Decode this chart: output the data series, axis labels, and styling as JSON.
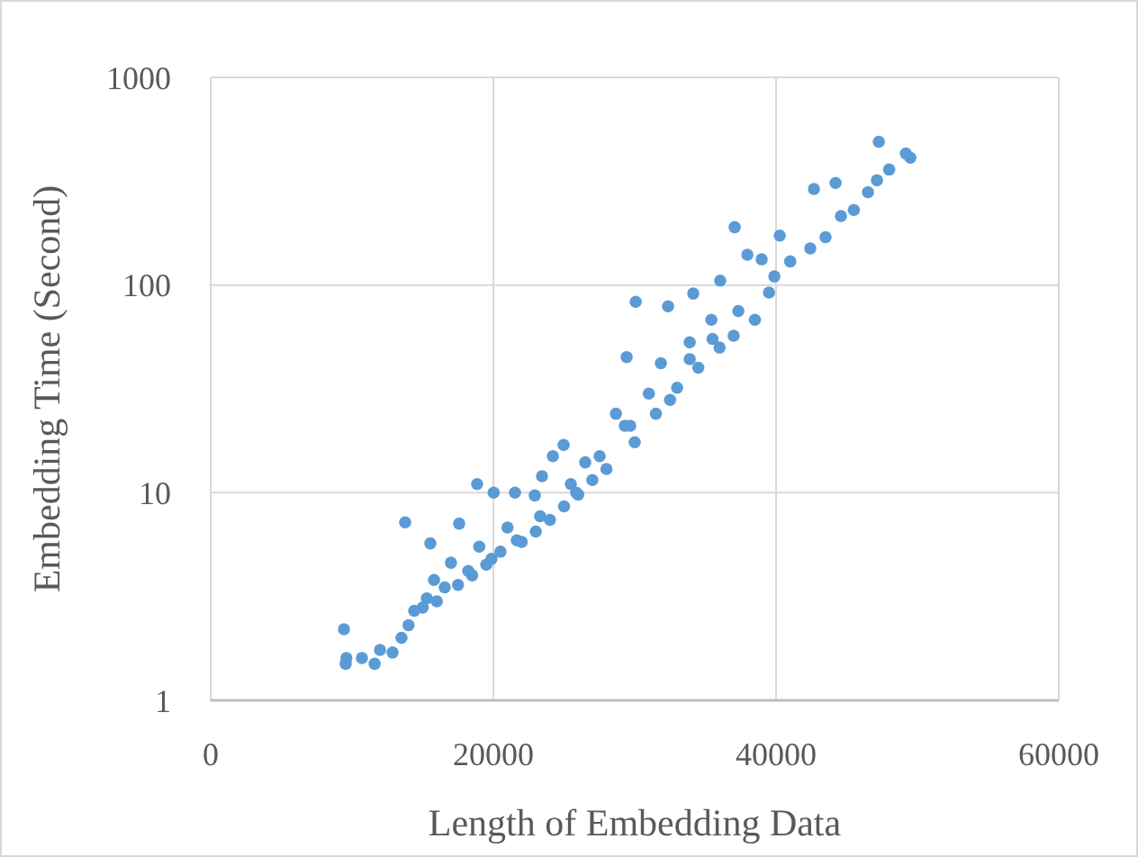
{
  "chart_data": {
    "type": "scatter",
    "xlabel": "Length of Embedding Data",
    "ylabel": "Embedding Time (Second)",
    "xlim": [
      0,
      60000
    ],
    "xticks": [
      0,
      20000,
      40000,
      60000
    ],
    "ylim": [
      1,
      1000
    ],
    "yticks": [
      1,
      10,
      100,
      1000
    ],
    "log": "y",
    "grid": true,
    "marker": "circle",
    "series": [
      {
        "color": "#5b9bd5",
        "x": [
          9430,
          9550,
          9600,
          10700,
          11600,
          11980,
          12870,
          13760,
          15540,
          17580,
          18850,
          20020,
          21530,
          22930,
          23440,
          24210,
          24970,
          14400,
          15290,
          16560,
          18220,
          19870,
          21660,
          23310,
          25480,
          27520,
          29300,
          25860,
          29680,
          33890,
          37330,
          39880,
          42420,
          44590,
          47140,
          49180,
          30070,
          32360,
          34140,
          36050,
          37070,
          37970,
          38980,
          40260,
          42680,
          44210,
          47270,
          29430,
          31850,
          35420,
          33890,
          28670,
          15800,
          17000,
          19000,
          21000,
          26500,
          31000,
          35500,
          13500,
          14000,
          15000,
          16000,
          17500,
          18500,
          19500,
          20500,
          22000,
          23000,
          24000,
          25000,
          26000,
          27000,
          28000,
          30000,
          31500,
          32500,
          33000,
          34500,
          36000,
          37000,
          38500,
          39500,
          41000,
          43500,
          45500,
          46500,
          48000,
          49500
        ],
        "values": [
          2.2,
          1.5,
          1.6,
          1.6,
          1.5,
          1.75,
          1.7,
          7.2,
          5.7,
          7.1,
          11,
          10,
          10,
          9.7,
          12,
          15,
          17,
          2.7,
          3.1,
          3.5,
          4.2,
          4.8,
          5.9,
          7.7,
          11,
          15,
          21,
          10,
          21,
          44,
          75,
          110,
          150,
          215,
          320,
          430,
          83,
          79,
          91,
          105,
          190,
          140,
          133,
          173,
          290,
          310,
          490,
          45,
          42,
          68,
          53,
          24,
          3.8,
          4.6,
          5.5,
          6.8,
          14,
          30,
          55,
          2.0,
          2.3,
          2.8,
          3.0,
          3.6,
          4.0,
          4.5,
          5.2,
          5.8,
          6.5,
          7.4,
          8.6,
          9.8,
          11.5,
          13,
          17.5,
          24,
          28,
          32,
          40,
          50,
          57,
          68,
          92,
          130,
          170,
          230,
          280,
          360,
          410
        ]
      }
    ]
  }
}
